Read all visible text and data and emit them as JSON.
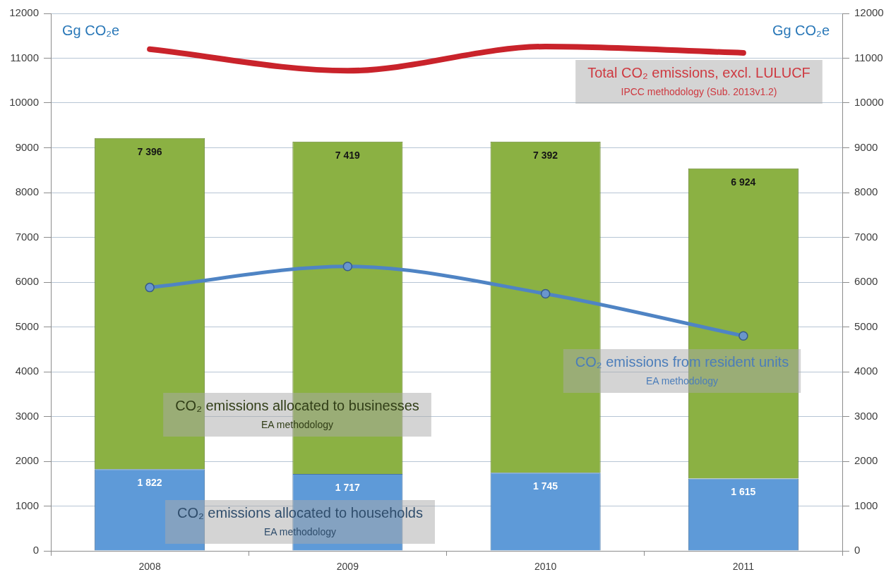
{
  "chart_data": {
    "type": "bar",
    "stacked": true,
    "categories": [
      "2008",
      "2009",
      "2010",
      "2011"
    ],
    "series": [
      {
        "name": "CO₂ emissions allocated to households",
        "color": "#5e9ad8",
        "values": [
          1822,
          1717,
          1745,
          1615
        ],
        "value_labels": [
          "1 822",
          "1 717",
          "1 745",
          "1 615"
        ]
      },
      {
        "name": "CO₂ emissions allocated to businesses",
        "color": "#8bb143",
        "values": [
          7396,
          7419,
          7392,
          6924
        ],
        "value_labels": [
          "7 396",
          "7 419",
          "7 392",
          "6 924"
        ]
      },
      {
        "name": "CO₂ emissions from resident units",
        "type": "line",
        "marker": "circle",
        "color": "#4f84c4",
        "values": [
          5880,
          6350,
          5740,
          4800
        ]
      },
      {
        "name": "Total CO₂ emissions, excl. LULUCF",
        "type": "line",
        "marker": "none",
        "color": "#c9232b",
        "values": [
          11200,
          10720,
          11260,
          11120
        ]
      }
    ],
    "ylabel": "Gg CO₂e",
    "y2label": "Gg CO₂e",
    "ylim": [
      0,
      12000
    ],
    "yticks": [
      0,
      1000,
      2000,
      3000,
      4000,
      5000,
      6000,
      7000,
      8000,
      9000,
      10000,
      11000,
      12000
    ],
    "y2lim": [
      0,
      12000
    ],
    "y2ticks": [
      0,
      1000,
      2000,
      3000,
      4000,
      5000,
      6000,
      7000,
      8000,
      9000,
      10000,
      11000,
      12000
    ],
    "grid": "y",
    "annotations": [
      "EA methodology",
      "EA methodology",
      "EA methodology",
      "IPCC methodology (Sub. 2013v1.2)"
    ]
  }
}
